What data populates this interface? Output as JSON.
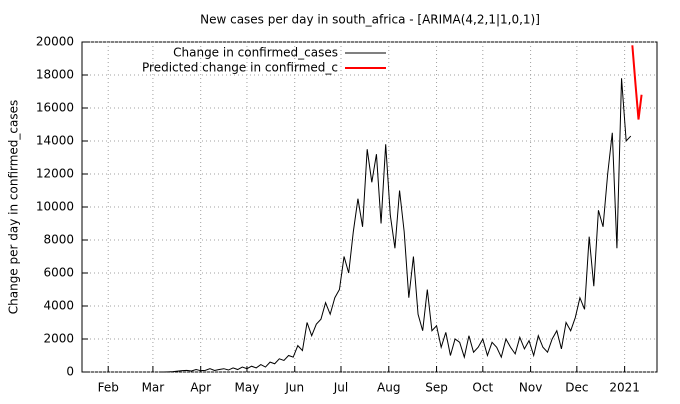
{
  "chart_data": {
    "type": "line",
    "title": "New cases per day in south_africa -  [ARIMA(4,2,1|1,0,1)]",
    "ylabel": "Change per day in confirmed_cases",
    "xlim": [
      14,
      387
    ],
    "xticks": [
      {
        "value": 31,
        "label": "Feb"
      },
      {
        "value": 60,
        "label": "Mar"
      },
      {
        "value": 91,
        "label": "Apr"
      },
      {
        "value": 121,
        "label": "May"
      },
      {
        "value": 152,
        "label": "Jun"
      },
      {
        "value": 182,
        "label": "Jul"
      },
      {
        "value": 213,
        "label": "Aug"
      },
      {
        "value": 244,
        "label": "Sep"
      },
      {
        "value": 274,
        "label": "Oct"
      },
      {
        "value": 305,
        "label": "Nov"
      },
      {
        "value": 335,
        "label": "Dec"
      },
      {
        "value": 366,
        "label": "2021"
      }
    ],
    "ylim": [
      0,
      20000
    ],
    "yticks": [
      0,
      2000,
      4000,
      6000,
      8000,
      10000,
      12000,
      14000,
      16000,
      18000,
      20000
    ],
    "grid": true,
    "legend": "top-left",
    "series": [
      {
        "name": "Change in confirmed_cases",
        "color": "#000000",
        "x": [
          64,
          67,
          70,
          73,
          76,
          79,
          82,
          85,
          88,
          91,
          94,
          97,
          100,
          103,
          106,
          109,
          112,
          115,
          118,
          121,
          124,
          127,
          130,
          133,
          136,
          139,
          142,
          145,
          148,
          151,
          154,
          157,
          160,
          163,
          166,
          169,
          172,
          175,
          178,
          181,
          184,
          187,
          190,
          193,
          196,
          199,
          202,
          205,
          208,
          211,
          214,
          217,
          220,
          223,
          226,
          229,
          232,
          235,
          238,
          241,
          244,
          247,
          250,
          253,
          256,
          259,
          262,
          265,
          268,
          271,
          274,
          277,
          280,
          283,
          286,
          289,
          292,
          295,
          298,
          301,
          304,
          307,
          310,
          313,
          316,
          319,
          322,
          325,
          328,
          331,
          334,
          337,
          340,
          343,
          346,
          349,
          352,
          355,
          358,
          361,
          364,
          367,
          370
        ],
        "values": [
          0,
          0,
          10,
          20,
          50,
          80,
          100,
          60,
          150,
          80,
          100,
          200,
          90,
          150,
          200,
          120,
          250,
          150,
          300,
          200,
          350,
          250,
          450,
          300,
          600,
          500,
          800,
          700,
          1000,
          900,
          1600,
          1300,
          3000,
          2200,
          2900,
          3200,
          4200,
          3500,
          4500,
          5000,
          7000,
          6000,
          8500,
          10500,
          8800,
          13500,
          11500,
          13200,
          9000,
          13800,
          9500,
          7500,
          11000,
          8500,
          4500,
          7000,
          3500,
          2500,
          5000,
          2500,
          2800,
          1500,
          2400,
          1000,
          2000,
          1800,
          900,
          2200,
          1200,
          1500,
          2000,
          1000,
          1800,
          1500,
          900,
          2000,
          1500,
          1100,
          2100,
          1400,
          1900,
          1000,
          2200,
          1500,
          1200,
          2000,
          2500,
          1400,
          3000,
          2500,
          3300,
          4500,
          3800,
          8200,
          5200,
          9800,
          8800,
          12000,
          14500,
          7500,
          17800,
          14000,
          14300
        ]
      },
      {
        "name": "Predicted change in confirmed_c",
        "color": "#ff0000",
        "x": [
          371,
          373,
          375,
          377
        ],
        "values": [
          19800,
          17500,
          15300,
          16800
        ]
      }
    ]
  }
}
